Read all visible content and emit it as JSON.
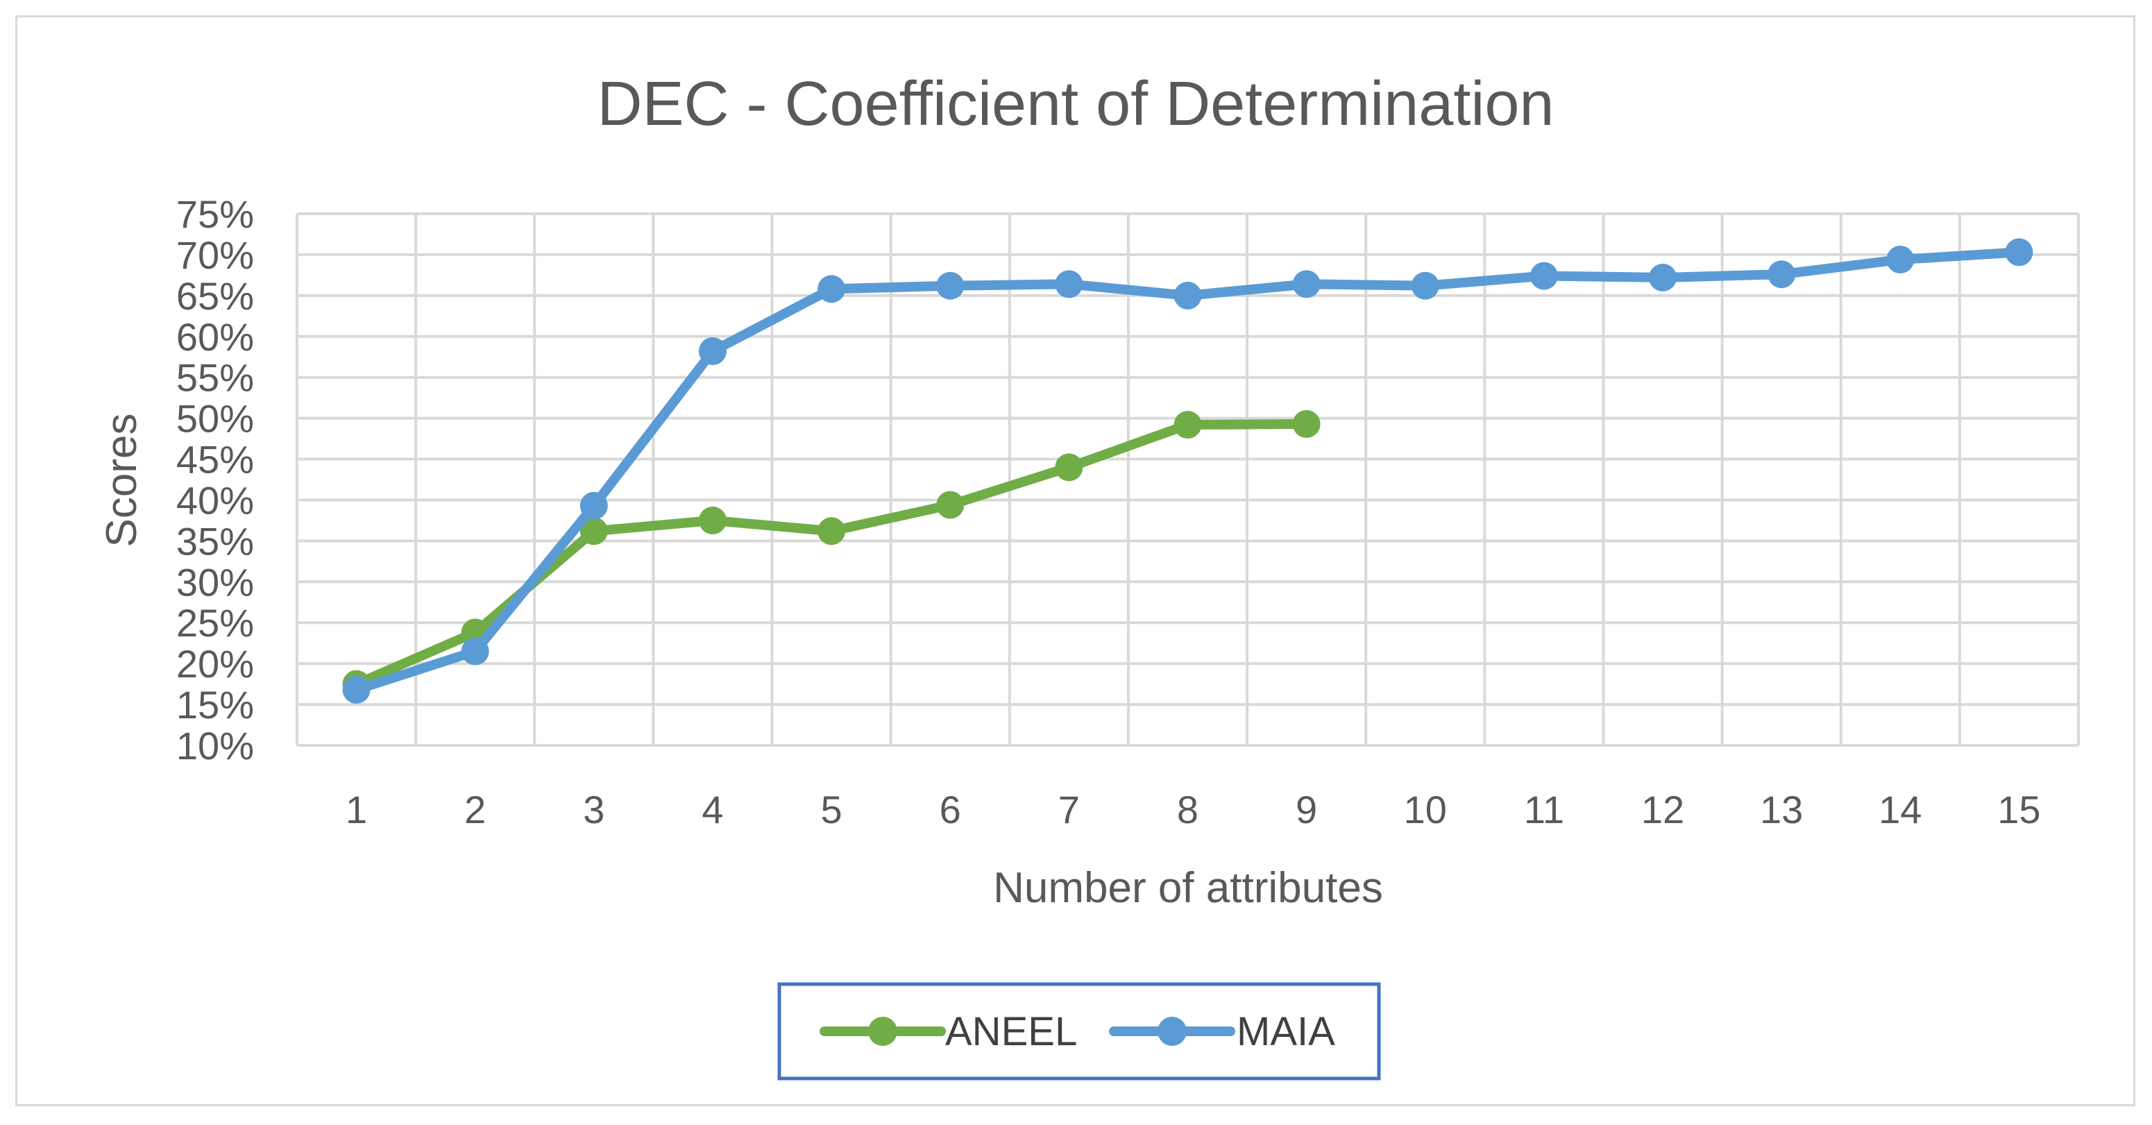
{
  "chart_data": {
    "type": "line",
    "title": "DEC - Coefficient of Determination",
    "xlabel": "Number of attributes",
    "ylabel": "Scores",
    "categories": [
      "1",
      "2",
      "3",
      "4",
      "5",
      "6",
      "7",
      "8",
      "9",
      "10",
      "11",
      "12",
      "13",
      "14",
      "15"
    ],
    "y_ticks": [
      "10%",
      "15%",
      "20%",
      "25%",
      "30%",
      "35%",
      "40%",
      "45%",
      "50%",
      "55%",
      "60%",
      "65%",
      "70%",
      "75%"
    ],
    "ylim": [
      10,
      75
    ],
    "grid": true,
    "legend_position": "bottom",
    "series": [
      {
        "name": "ANEEL",
        "color": "#70ad47",
        "values": [
          17.5,
          23.8,
          36.2,
          37.5,
          36.2,
          39.4,
          44.0,
          49.2,
          49.3,
          null,
          null,
          null,
          null,
          null,
          null
        ]
      },
      {
        "name": "MAIA",
        "color": "#5b9bd5",
        "values": [
          16.8,
          21.5,
          39.3,
          58.2,
          65.8,
          66.2,
          66.4,
          65.0,
          66.4,
          66.2,
          67.4,
          67.2,
          67.6,
          69.4,
          70.3
        ]
      }
    ]
  }
}
